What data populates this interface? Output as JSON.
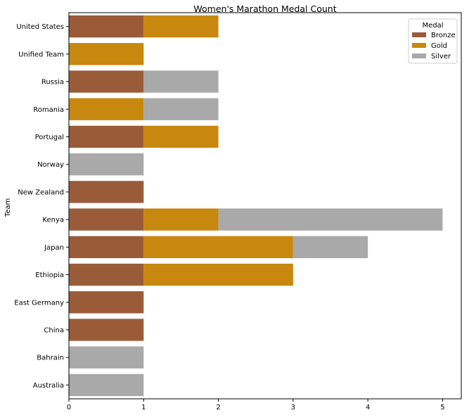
{
  "chart_data": {
    "type": "bar",
    "orientation": "horizontal",
    "stacked": true,
    "title": "Women's Marathon Medal Count",
    "xlabel": "",
    "ylabel": "Team",
    "xlim": [
      0,
      5.25
    ],
    "xticks": [
      0,
      1,
      2,
      3,
      4,
      5
    ],
    "grid": false,
    "legend": {
      "title": "Medal",
      "placement": "top-right"
    },
    "categories": [
      "United States",
      "Unified Team",
      "Russia",
      "Romania",
      "Portugal",
      "Norway",
      "New Zealand",
      "Kenya",
      "Japan",
      "Ethiopia",
      "East Germany",
      "China",
      "Bahrain",
      "Australia"
    ],
    "series": [
      {
        "name": "Bronze",
        "color": "#9a5c38",
        "values": [
          1,
          0,
          1,
          0,
          1,
          0,
          1,
          1,
          1,
          1,
          1,
          1,
          0,
          0
        ]
      },
      {
        "name": "Gold",
        "color": "#c8880f",
        "values": [
          1,
          1,
          0,
          1,
          1,
          0,
          0,
          1,
          2,
          2,
          0,
          0,
          0,
          0
        ]
      },
      {
        "name": "Silver",
        "color": "#a9a9a9",
        "values": [
          0,
          0,
          1,
          1,
          0,
          1,
          0,
          3,
          1,
          0,
          0,
          0,
          1,
          1
        ]
      }
    ]
  }
}
